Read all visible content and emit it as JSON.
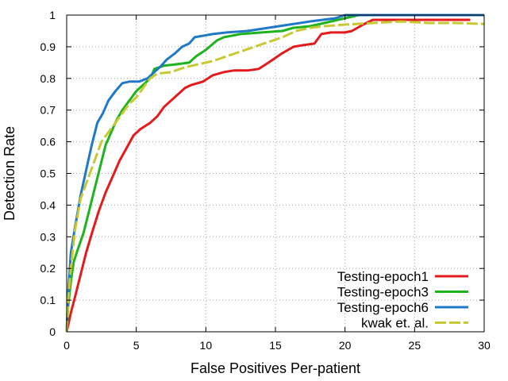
{
  "chart_data": {
    "type": "line",
    "title": "",
    "xlabel": "False Positives Per-patient",
    "ylabel": "Detection Rate",
    "xlim": [
      0,
      30
    ],
    "ylim": [
      0,
      1
    ],
    "xticks": [
      0,
      5,
      10,
      15,
      20,
      25,
      30
    ],
    "yticks": [
      0,
      0.1,
      0.2,
      0.3,
      0.4,
      0.5,
      0.6,
      0.7,
      0.8,
      0.9,
      1
    ],
    "grid": true,
    "legend_position": "bottom-right",
    "series": [
      {
        "name": "Testing-epoch1",
        "color": "#e41a1c",
        "style": "solid",
        "points": [
          [
            0,
            0
          ],
          [
            0.1,
            0.02
          ],
          [
            0.3,
            0.06
          ],
          [
            0.6,
            0.11
          ],
          [
            1.0,
            0.18
          ],
          [
            1.4,
            0.25
          ],
          [
            1.8,
            0.31
          ],
          [
            2.3,
            0.38
          ],
          [
            2.8,
            0.44
          ],
          [
            3.3,
            0.49
          ],
          [
            3.8,
            0.54
          ],
          [
            4.3,
            0.58
          ],
          [
            4.8,
            0.62
          ],
          [
            5.3,
            0.64
          ],
          [
            6.0,
            0.66
          ],
          [
            6.5,
            0.68
          ],
          [
            7.0,
            0.71
          ],
          [
            7.5,
            0.73
          ],
          [
            8.0,
            0.75
          ],
          [
            8.5,
            0.77
          ],
          [
            9.0,
            0.78
          ],
          [
            9.8,
            0.79
          ],
          [
            10.5,
            0.81
          ],
          [
            11.3,
            0.82
          ],
          [
            12.0,
            0.825
          ],
          [
            13.0,
            0.825
          ],
          [
            13.8,
            0.83
          ],
          [
            14.5,
            0.85
          ],
          [
            15.5,
            0.88
          ],
          [
            16.3,
            0.9
          ],
          [
            17.0,
            0.905
          ],
          [
            17.8,
            0.91
          ],
          [
            18.3,
            0.94
          ],
          [
            19.0,
            0.945
          ],
          [
            20.0,
            0.945
          ],
          [
            20.5,
            0.95
          ],
          [
            21.3,
            0.97
          ],
          [
            22.0,
            0.985
          ],
          [
            25.0,
            0.985
          ],
          [
            29.0,
            0.985
          ]
        ]
      },
      {
        "name": "Testing-epoch3",
        "color": "#1db31d",
        "style": "solid",
        "points": [
          [
            0,
            0
          ],
          [
            0.1,
            0.08
          ],
          [
            0.3,
            0.16
          ],
          [
            0.5,
            0.22
          ],
          [
            0.8,
            0.26
          ],
          [
            1.2,
            0.31
          ],
          [
            1.6,
            0.38
          ],
          [
            2.0,
            0.45
          ],
          [
            2.4,
            0.52
          ],
          [
            2.8,
            0.59
          ],
          [
            3.2,
            0.63
          ],
          [
            3.6,
            0.67
          ],
          [
            4.0,
            0.7
          ],
          [
            4.5,
            0.73
          ],
          [
            5.0,
            0.76
          ],
          [
            5.5,
            0.78
          ],
          [
            6.0,
            0.8
          ],
          [
            6.3,
            0.83
          ],
          [
            7.0,
            0.84
          ],
          [
            8.0,
            0.845
          ],
          [
            8.8,
            0.85
          ],
          [
            9.3,
            0.87
          ],
          [
            10.0,
            0.89
          ],
          [
            10.8,
            0.92
          ],
          [
            11.3,
            0.93
          ],
          [
            12.5,
            0.94
          ],
          [
            14.0,
            0.945
          ],
          [
            15.5,
            0.95
          ],
          [
            16.3,
            0.96
          ],
          [
            17.5,
            0.965
          ],
          [
            18.5,
            0.975
          ],
          [
            19.5,
            0.985
          ],
          [
            20.5,
            0.995
          ],
          [
            21,
            1.0
          ],
          [
            30,
            1.0
          ]
        ]
      },
      {
        "name": "Testing-epoch6",
        "color": "#1f78c8",
        "style": "solid",
        "points": [
          [
            0,
            0
          ],
          [
            0.1,
            0.12
          ],
          [
            0.3,
            0.25
          ],
          [
            0.6,
            0.33
          ],
          [
            1.0,
            0.43
          ],
          [
            1.4,
            0.51
          ],
          [
            1.8,
            0.59
          ],
          [
            2.2,
            0.66
          ],
          [
            2.6,
            0.69
          ],
          [
            3.0,
            0.73
          ],
          [
            3.5,
            0.76
          ],
          [
            4.0,
            0.785
          ],
          [
            4.5,
            0.79
          ],
          [
            5.2,
            0.79
          ],
          [
            5.8,
            0.8
          ],
          [
            6.3,
            0.82
          ],
          [
            6.8,
            0.84
          ],
          [
            7.2,
            0.86
          ],
          [
            7.8,
            0.88
          ],
          [
            8.3,
            0.9
          ],
          [
            8.8,
            0.91
          ],
          [
            9.2,
            0.93
          ],
          [
            10.5,
            0.94
          ],
          [
            11.5,
            0.945
          ],
          [
            13.0,
            0.95
          ],
          [
            14.5,
            0.96
          ],
          [
            16.0,
            0.97
          ],
          [
            17.5,
            0.98
          ],
          [
            19.3,
            0.99
          ],
          [
            20.0,
            1.0
          ],
          [
            30,
            1.0
          ]
        ]
      },
      {
        "name": "kwak et. al.",
        "color": "#c8c832",
        "style": "dashed",
        "points": [
          [
            0,
            0
          ],
          [
            0.1,
            0.1
          ],
          [
            0.3,
            0.2
          ],
          [
            0.6,
            0.32
          ],
          [
            1.0,
            0.42
          ],
          [
            1.5,
            0.48
          ],
          [
            2.0,
            0.54
          ],
          [
            2.5,
            0.6
          ],
          [
            3.0,
            0.63
          ],
          [
            3.5,
            0.66
          ],
          [
            4.0,
            0.69
          ],
          [
            4.5,
            0.72
          ],
          [
            5.0,
            0.74
          ],
          [
            5.5,
            0.77
          ],
          [
            6.0,
            0.8
          ],
          [
            6.5,
            0.815
          ],
          [
            7.5,
            0.82
          ],
          [
            8.5,
            0.835
          ],
          [
            9.5,
            0.845
          ],
          [
            10.5,
            0.855
          ],
          [
            11.5,
            0.87
          ],
          [
            12.5,
            0.885
          ],
          [
            13.5,
            0.9
          ],
          [
            14.5,
            0.915
          ],
          [
            15.5,
            0.93
          ],
          [
            16.5,
            0.95
          ],
          [
            17.5,
            0.96
          ],
          [
            18.5,
            0.965
          ],
          [
            20.0,
            0.97
          ],
          [
            22.0,
            0.975
          ],
          [
            24.0,
            0.98
          ],
          [
            26.0,
            0.975
          ],
          [
            28.0,
            0.975
          ],
          [
            30.0,
            0.972
          ]
        ]
      }
    ]
  }
}
